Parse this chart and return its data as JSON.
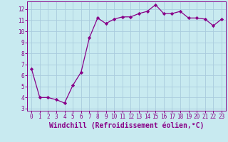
{
  "x": [
    0,
    1,
    2,
    3,
    4,
    5,
    6,
    7,
    8,
    9,
    10,
    11,
    12,
    13,
    14,
    15,
    16,
    17,
    18,
    19,
    20,
    21,
    22,
    23
  ],
  "y": [
    6.6,
    4.0,
    4.0,
    3.8,
    3.5,
    5.1,
    6.3,
    9.4,
    11.2,
    10.7,
    11.1,
    11.3,
    11.3,
    11.6,
    11.8,
    12.4,
    11.6,
    11.6,
    11.8,
    11.2,
    11.2,
    11.1,
    10.5,
    11.1
  ],
  "line_color": "#880088",
  "marker": "D",
  "marker_size": 2.2,
  "bg_color": "#c8eaf0",
  "grid_color": "#aaccdd",
  "xlabel": "Windchill (Refroidissement éolien,°C)",
  "xlim": [
    -0.5,
    23.5
  ],
  "ylim": [
    2.8,
    12.7
  ],
  "yticks": [
    3,
    4,
    5,
    6,
    7,
    8,
    9,
    10,
    11,
    12
  ],
  "xticks": [
    0,
    1,
    2,
    3,
    4,
    5,
    6,
    7,
    8,
    9,
    10,
    11,
    12,
    13,
    14,
    15,
    16,
    17,
    18,
    19,
    20,
    21,
    22,
    23
  ],
  "tick_fontsize": 5.5,
  "xlabel_fontsize": 7.0,
  "axis_color": "#880088",
  "linewidth": 0.9
}
